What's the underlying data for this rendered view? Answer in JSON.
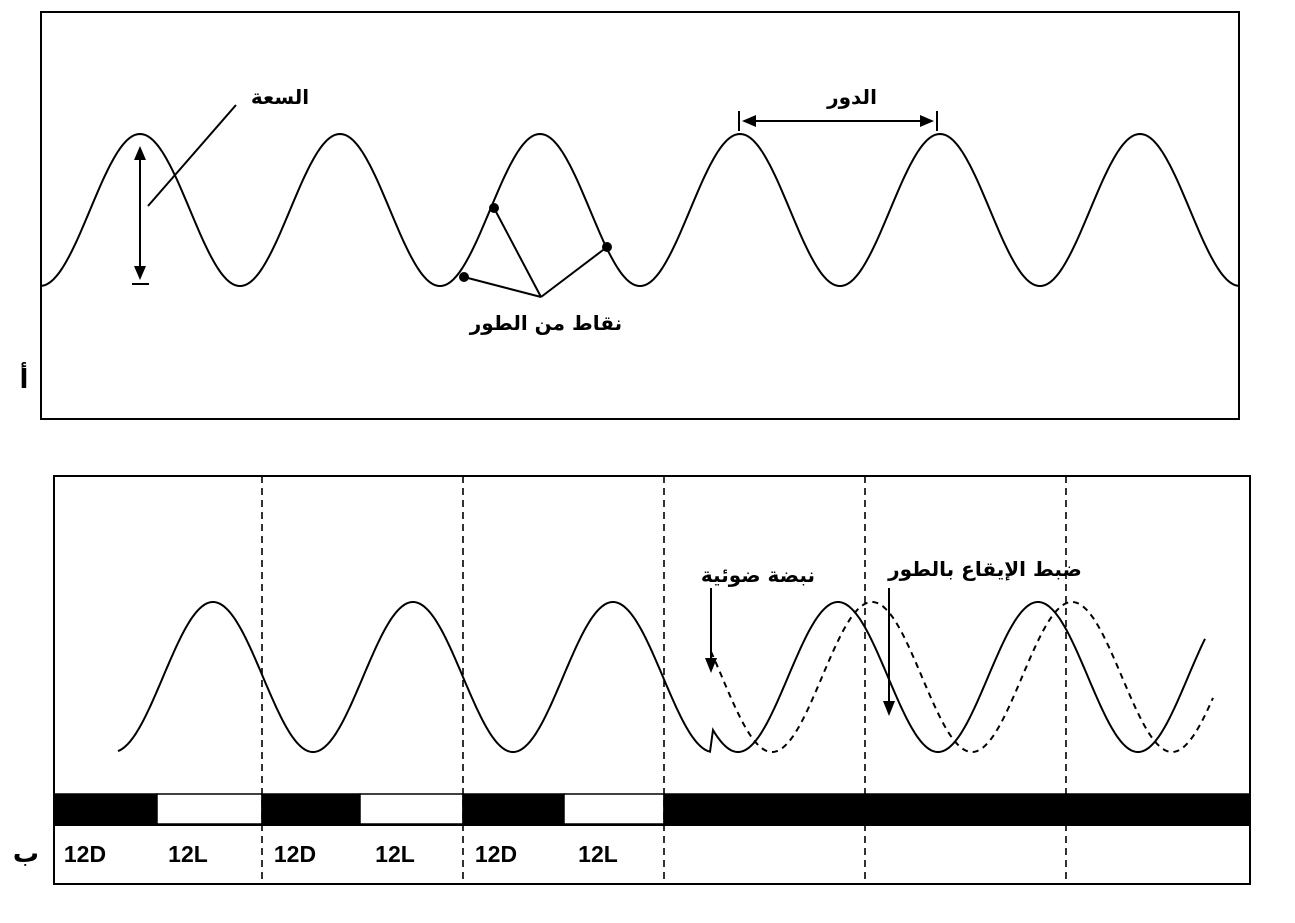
{
  "panel_a": {
    "panel_letter": "أ",
    "labels": {
      "amplitude": "السعة",
      "period": "الدور",
      "phase_points": "نقاط من الطور"
    }
  },
  "panel_b": {
    "panel_letter": "ب",
    "labels": {
      "light_pulse": "نبضة ضوئية",
      "phase_shift": "ضبط الإيقاع بالطور"
    },
    "light_schedule": [
      {
        "label": "12D",
        "state": "dark"
      },
      {
        "label": "12L",
        "state": "light"
      },
      {
        "label": "12D",
        "state": "dark"
      },
      {
        "label": "12L",
        "state": "light"
      },
      {
        "label": "12D",
        "state": "dark"
      },
      {
        "label": "12L",
        "state": "light"
      },
      {
        "label": "",
        "state": "dark"
      },
      {
        "label": "",
        "state": "dark"
      },
      {
        "label": "",
        "state": "dark"
      }
    ]
  },
  "colors": {
    "ink": "#000000",
    "paper": "#ffffff"
  }
}
